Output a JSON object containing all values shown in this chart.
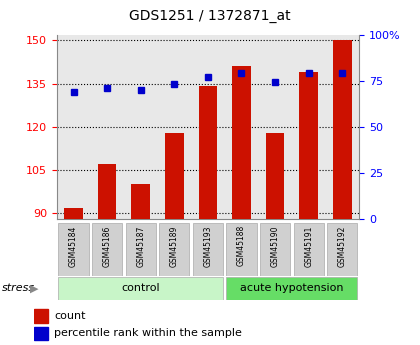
{
  "title": "GDS1251 / 1372871_at",
  "samples": [
    "GSM45184",
    "GSM45186",
    "GSM45187",
    "GSM45189",
    "GSM45193",
    "GSM45188",
    "GSM45190",
    "GSM45191",
    "GSM45192"
  ],
  "counts": [
    92,
    107,
    100,
    118,
    134,
    141,
    118,
    139,
    150
  ],
  "percentiles": [
    69,
    71,
    70,
    73,
    77,
    79,
    74,
    79,
    79
  ],
  "groups": [
    "control",
    "control",
    "control",
    "control",
    "control",
    "acute hypotension",
    "acute hypotension",
    "acute hypotension",
    "acute hypotension"
  ],
  "group_colors": {
    "control": "#c8f5c8",
    "acute hypotension": "#66dd66"
  },
  "bar_color": "#cc1100",
  "dot_color": "#0000cc",
  "ylim_left": [
    88,
    152
  ],
  "ylim_right": [
    0,
    100
  ],
  "yticks_left": [
    90,
    105,
    120,
    135,
    150
  ],
  "yticks_right": [
    0,
    25,
    50,
    75,
    100
  ],
  "ytick_right_labels": [
    "0",
    "25",
    "50",
    "75",
    "100%"
  ],
  "background_color": "#ffffff",
  "plot_bg_color": "#e8e8e8",
  "stress_label": "stress",
  "legend_count": "count",
  "legend_pct": "percentile rank within the sample",
  "bar_width": 0.55
}
